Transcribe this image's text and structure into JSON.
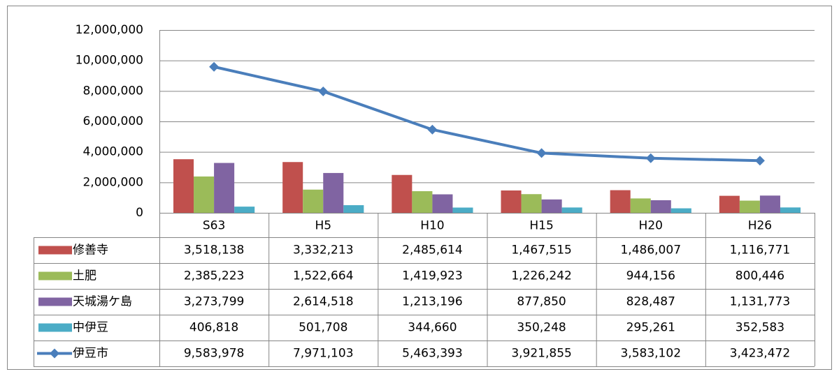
{
  "chart_data": {
    "type": "bar",
    "categories": [
      "S63",
      "H5",
      "H10",
      "H15",
      "H20",
      "H26"
    ],
    "series": [
      {
        "name": "修善寺",
        "color": "#c0504d",
        "type": "bar",
        "values": [
          3518138,
          3332213,
          2485614,
          1467515,
          1486007,
          1116771
        ],
        "value_labels": [
          "3,518,138",
          "3,332,213",
          "2,485,614",
          "1,467,515",
          "1,486,007",
          "1,116,771"
        ]
      },
      {
        "name": "土肥",
        "color": "#9bbb59",
        "type": "bar",
        "values": [
          2385223,
          1522664,
          1419923,
          1226242,
          944156,
          800446
        ],
        "value_labels": [
          "2,385,223",
          "1,522,664",
          "1,419,923",
          "1,226,242",
          "944,156",
          "800,446"
        ]
      },
      {
        "name": "天城湯ケ島",
        "color": "#8064a2",
        "type": "bar",
        "values": [
          3273799,
          2614518,
          1213196,
          877850,
          828487,
          1131773
        ],
        "value_labels": [
          "3,273,799",
          "2,614,518",
          "1,213,196",
          "877,850",
          "828,487",
          "1,131,773"
        ]
      },
      {
        "name": "中伊豆",
        "color": "#4bacc6",
        "type": "bar",
        "values": [
          406818,
          501708,
          344660,
          350248,
          295261,
          352583
        ],
        "value_labels": [
          "406,818",
          "501,708",
          "344,660",
          "350,248",
          "295,261",
          "352,583"
        ]
      },
      {
        "name": "伊豆市",
        "color": "#4a7ebb",
        "type": "line",
        "values": [
          9583978,
          7971103,
          5463393,
          3921855,
          3583102,
          3423472
        ],
        "value_labels": [
          "9,583,978",
          "7,971,103",
          "5,463,393",
          "3,921,855",
          "3,583,102",
          "3,423,472"
        ]
      }
    ],
    "ylim": [
      0,
      12000000
    ],
    "yticks": [
      0,
      {
        "value": 2000000,
        "label": "2,000,000"
      },
      {
        "value": 4000000,
        "label": "4,000,000"
      },
      {
        "value": 6000000,
        "label": "6,000,000"
      },
      {
        "value": 8000000,
        "label": "8,000,000"
      },
      {
        "value": 10000000,
        "label": "10,000,000"
      },
      {
        "value": 12000000,
        "label": "12,000,000"
      }
    ],
    "grid": true,
    "legend": "table"
  }
}
